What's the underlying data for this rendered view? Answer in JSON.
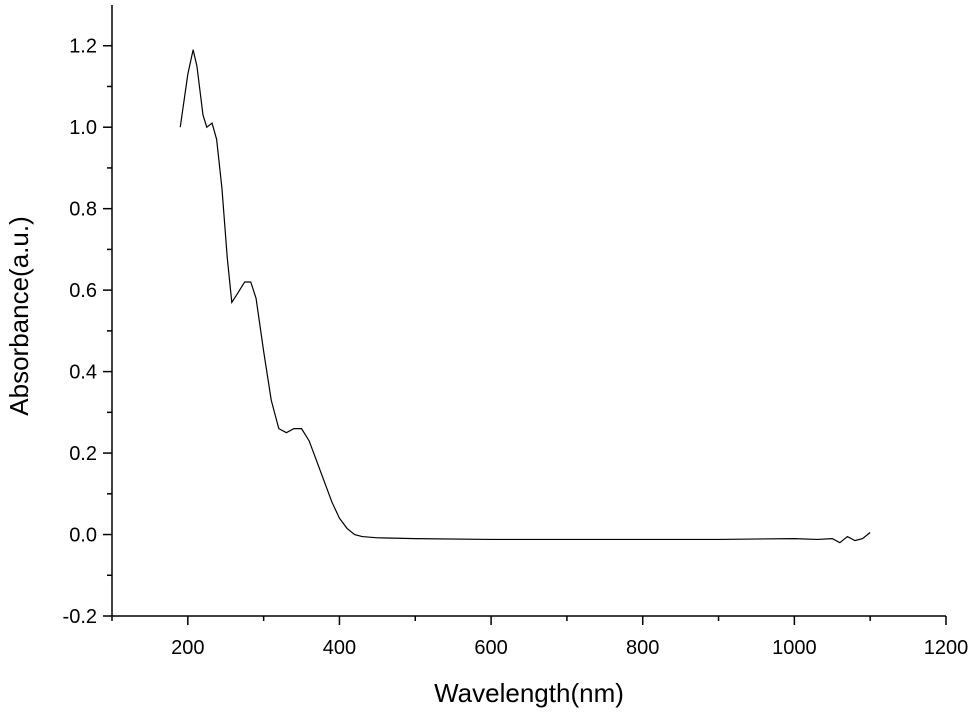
{
  "chart_data": {
    "type": "line",
    "xlabel": "Wavelength(nm)",
    "ylabel": "Absorbance(a.u.)",
    "xlim": [
      100,
      1200
    ],
    "ylim": [
      -0.2,
      1.3
    ],
    "xticks": [
      200,
      400,
      600,
      800,
      1000,
      1200
    ],
    "yticks": [
      -0.2,
      {
        "value": 0,
        "label": "0.0"
      },
      0.2,
      0.4,
      0.6,
      0.8,
      {
        "value": 1,
        "label": "1.0"
      },
      1.2
    ],
    "xminorticks": [
      100,
      300,
      500,
      700,
      900,
      1100
    ],
    "yminorticks": [
      -0.1,
      0.1,
      0.3,
      0.5,
      0.7,
      0.9,
      1.1
    ],
    "grid": false,
    "series": [
      {
        "color": "#000000",
        "x": [
          190,
          200,
          207,
          212,
          220,
          225,
          232,
          238,
          245,
          252,
          258,
          265,
          275,
          283,
          290,
          300,
          310,
          320,
          330,
          340,
          350,
          360,
          370,
          380,
          390,
          400,
          410,
          420,
          430,
          450,
          500,
          600,
          700,
          800,
          900,
          1000,
          1030,
          1050,
          1060,
          1070,
          1080,
          1090,
          1100
        ],
        "values": [
          1.0,
          1.13,
          1.19,
          1.15,
          1.03,
          1.0,
          1.01,
          0.97,
          0.85,
          0.68,
          0.57,
          0.59,
          0.62,
          0.62,
          0.58,
          0.45,
          0.33,
          0.26,
          0.25,
          0.26,
          0.26,
          0.23,
          0.18,
          0.13,
          0.08,
          0.04,
          0.015,
          0.0,
          -0.005,
          -0.008,
          -0.01,
          -0.012,
          -0.012,
          -0.012,
          -0.012,
          -0.01,
          -0.012,
          -0.01,
          -0.02,
          -0.005,
          -0.015,
          -0.01,
          0.005
        ]
      }
    ]
  }
}
